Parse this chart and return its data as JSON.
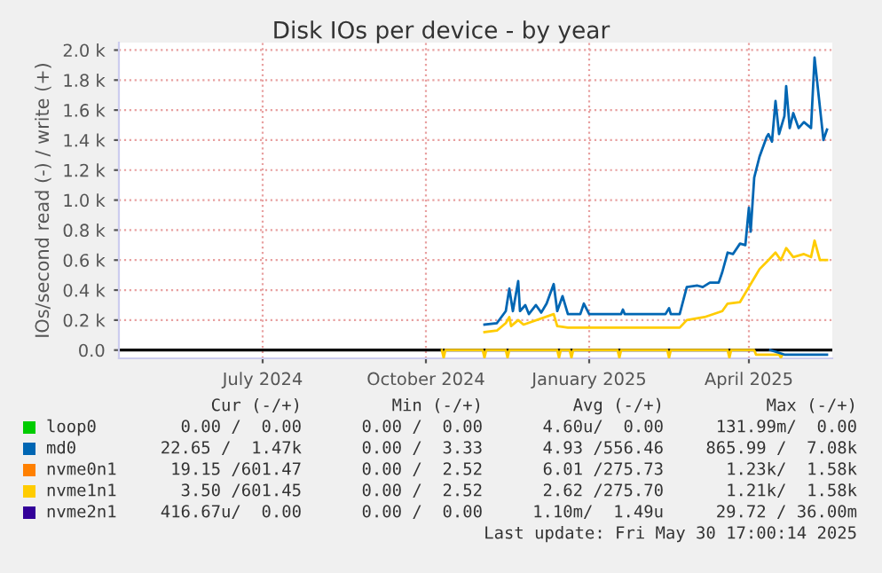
{
  "chart_data": {
    "type": "line",
    "title": "Disk IOs per device - by year",
    "ylabel": "IOs/second read (-) / write (+)",
    "xlim": [
      "2024-04-26",
      "2025-06-02"
    ],
    "ylim": [
      -55,
      2050
    ],
    "xticks": [
      {
        "value": "2024-07-16",
        "label": "July 2024"
      },
      {
        "value": "2024-10-16",
        "label": "October 2024"
      },
      {
        "value": "2025-01-16",
        "label": "January 2025"
      },
      {
        "value": "2025-04-16",
        "label": "April 2025"
      }
    ],
    "yticks": [
      {
        "value": 0,
        "label": "0.0"
      },
      {
        "value": 200,
        "label": "0.2 k"
      },
      {
        "value": 400,
        "label": "0.4 k"
      },
      {
        "value": 600,
        "label": "0.6 k"
      },
      {
        "value": 800,
        "label": "0.8 k"
      },
      {
        "value": 1000,
        "label": "1.0 k"
      },
      {
        "value": 1200,
        "label": "1.2 k"
      },
      {
        "value": 1400,
        "label": "1.4 k"
      },
      {
        "value": 1600,
        "label": "1.6 k"
      },
      {
        "value": 1800,
        "label": "1.8 k"
      },
      {
        "value": 2000,
        "label": "2.0 k"
      }
    ],
    "grid": true,
    "legend": "bottom",
    "ref_lines": [
      {
        "axis": "y",
        "value": 0,
        "color": "#000000"
      }
    ],
    "series": [
      {
        "name": "loop0",
        "color": "#00cc00"
      },
      {
        "name": "md0",
        "color": "#0066b3",
        "x": [
          "2024-11-18",
          "2024-11-25",
          "2024-11-30",
          "2024-12-02",
          "2024-12-04",
          "2024-12-07",
          "2024-12-08",
          "2024-12-11",
          "2024-12-13",
          "2024-12-17",
          "2024-12-20",
          "2024-12-23",
          "2024-12-27",
          "2024-12-29",
          "2025-01-01",
          "2025-01-04",
          "2025-01-11",
          "2025-01-13",
          "2025-01-16",
          "2025-02-03",
          "2025-02-04",
          "2025-02-05",
          "2025-02-28",
          "2025-03-02",
          "2025-03-03",
          "2025-03-08",
          "2025-03-12",
          "2025-03-18",
          "2025-03-21",
          "2025-03-25",
          "2025-03-30",
          "2025-04-01",
          "2025-04-04",
          "2025-04-07",
          "2025-04-11",
          "2025-04-14",
          "2025-04-16",
          "2025-04-17",
          "2025-04-19",
          "2025-04-22",
          "2025-04-26",
          "2025-04-27",
          "2025-04-29",
          "2025-05-01",
          "2025-05-03",
          "2025-05-06",
          "2025-05-07",
          "2025-05-09",
          "2025-05-11",
          "2025-05-14",
          "2025-05-17",
          "2025-05-21",
          "2025-05-23",
          "2025-05-26",
          "2025-05-28",
          "2025-05-30"
        ],
        "values": [
          170,
          180,
          260,
          410,
          260,
          460,
          260,
          300,
          240,
          300,
          250,
          310,
          440,
          260,
          360,
          240,
          240,
          310,
          240,
          240,
          270,
          240,
          240,
          280,
          240,
          240,
          420,
          430,
          420,
          450,
          450,
          520,
          650,
          640,
          710,
          700,
          950,
          790,
          1150,
          1290,
          1420,
          1440,
          1390,
          1660,
          1440,
          1560,
          1760,
          1480,
          1580,
          1480,
          1520,
          1480,
          1950,
          1620,
          1400,
          1470
        ]
      },
      {
        "name": "nvme0n1",
        "color": "#ff8000"
      },
      {
        "name": "nvme1n1",
        "color": "#ffcc00",
        "x": [
          "2024-11-18",
          "2024-11-25",
          "2024-11-30",
          "2024-12-02",
          "2024-12-03",
          "2024-12-07",
          "2024-12-10",
          "2024-12-27",
          "2024-12-29",
          "2025-01-04",
          "2025-03-08",
          "2025-03-12",
          "2025-03-22",
          "2025-04-01",
          "2025-04-04",
          "2025-04-11",
          "2025-04-16",
          "2025-04-19",
          "2025-04-22",
          "2025-04-27",
          "2025-05-01",
          "2025-05-04",
          "2025-05-07",
          "2025-05-11",
          "2025-05-17",
          "2025-05-21",
          "2025-05-23",
          "2025-05-26",
          "2025-05-30"
        ],
        "values": [
          120,
          130,
          180,
          220,
          160,
          200,
          170,
          240,
          160,
          150,
          150,
          200,
          220,
          260,
          310,
          320,
          420,
          480,
          540,
          600,
          650,
          600,
          680,
          620,
          640,
          620,
          730,
          600,
          600
        ]
      },
      {
        "name": "nvme2n1",
        "color": "#330099"
      },
      {
        "color": "#ffcc00",
        "x": [
          "2024-10-25",
          "2024-10-26",
          "2024-10-27",
          "2024-11-17",
          "2024-11-18",
          "2024-11-19",
          "2024-11-30",
          "2024-12-01",
          "2024-12-02",
          "2024-12-29",
          "2024-12-30",
          "2024-12-31",
          "2025-01-05",
          "2025-01-06",
          "2025-01-07",
          "2025-02-01",
          "2025-02-02",
          "2025-02-03",
          "2025-03-01",
          "2025-03-02",
          "2025-03-03",
          "2025-04-04",
          "2025-04-05",
          "2025-04-06",
          "2025-04-19",
          "2025-04-20",
          "2025-05-03",
          "2025-05-04",
          "2025-05-05"
        ],
        "values": [
          0,
          -50,
          0,
          0,
          -50,
          0,
          0,
          -50,
          0,
          0,
          -50,
          0,
          0,
          -50,
          0,
          0,
          -50,
          0,
          0,
          -50,
          0,
          0,
          -50,
          0,
          0,
          -30,
          -30,
          -50,
          -30
        ]
      },
      {
        "color": "#0066b3",
        "x": [
          "2025-04-28",
          "2025-05-06",
          "2025-05-30"
        ],
        "values": [
          0,
          -30,
          -30
        ]
      }
    ],
    "annotations": [
      "Cur (-/+)",
      "Min (-/+)",
      "Avg (-/+)",
      "Max (-/+)",
      "0.00 /  0.00",
      "0.00 /  0.00",
      "4.60u/  0.00",
      "131.99m/  0.00",
      "22.65 /  1.47k",
      "0.00 /  3.33",
      "4.93 /556.46",
      "865.99 /  7.08k",
      "19.15 /601.47",
      "0.00 /  2.52",
      "6.01 /275.73",
      "1.23k/  1.58k",
      "3.50 /601.45",
      "0.00 /  2.52",
      "2.62 /275.70",
      "1.21k/  1.58k",
      "416.67u/  0.00",
      "0.00 /  0.00",
      "1.10m/  1.49u",
      "29.72 / 36.00m",
      "Last update: Fri May 30 17:00:14 2025"
    ]
  }
}
